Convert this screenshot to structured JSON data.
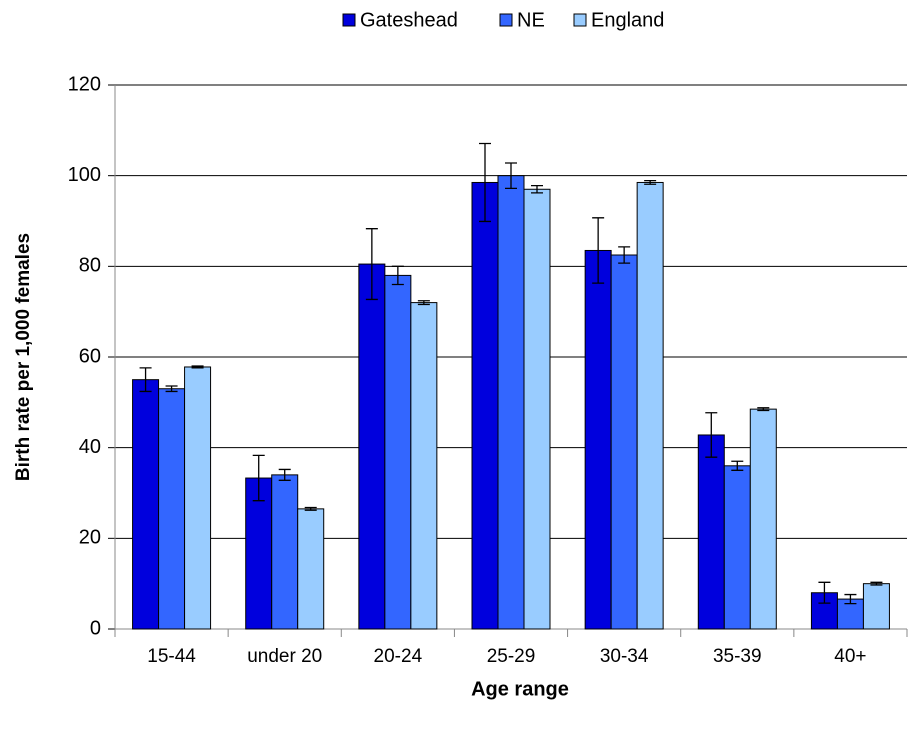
{
  "chart_data": {
    "type": "bar",
    "x_label": "Age range",
    "y_label": "Birth rate per 1,000 females",
    "categories": [
      "15-44",
      "under 20",
      "20-24",
      "25-29",
      "30-34",
      "35-39",
      "40+"
    ],
    "series": [
      {
        "name": "Gateshead",
        "color": "#0000dd",
        "values": [
          55,
          33.3,
          80.5,
          98.5,
          83.5,
          42.8,
          8
        ],
        "errors": [
          2.6,
          5,
          7.8,
          8.6,
          7.2,
          4.9,
          2.3
        ]
      },
      {
        "name": "NE",
        "color": "#3366ff",
        "values": [
          53,
          34,
          78,
          100,
          82.5,
          36,
          6.6
        ],
        "errors": [
          0.6,
          1.2,
          2,
          2.8,
          1.8,
          1,
          1
        ]
      },
      {
        "name": "England",
        "color": "#99ccff",
        "values": [
          57.8,
          26.5,
          72,
          97,
          98.5,
          48.5,
          10
        ],
        "errors": [
          0.2,
          0.3,
          0.4,
          0.8,
          0.4,
          0.3,
          0.3
        ]
      }
    ],
    "ylim": [
      0,
      120
    ],
    "yticks": [
      0,
      20,
      40,
      60,
      80,
      100,
      120
    ],
    "grid": true,
    "legend": "top"
  }
}
